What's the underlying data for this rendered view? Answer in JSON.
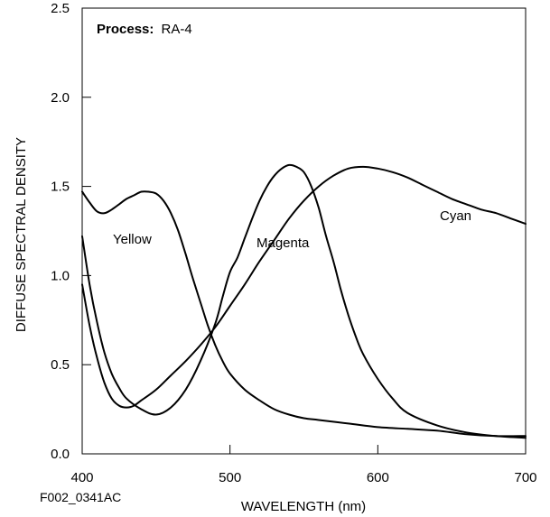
{
  "chart_data": {
    "type": "line",
    "annotation": {
      "bold": "Process:",
      "text": "RA-4"
    },
    "xlabel": "WAVELENGTH (nm)",
    "ylabel": "DIFFUSE SPECTRAL DENSITY",
    "xlim": [
      400,
      700
    ],
    "ylim": [
      0.0,
      2.5
    ],
    "xticks": [
      400,
      500,
      600,
      700
    ],
    "yticks": [
      "0.0",
      "0.5",
      "1.0",
      "1.5",
      "2.0",
      "2.5"
    ],
    "grid": false,
    "legend": "none",
    "series": [
      {
        "name": "Yellow",
        "x": [
          400,
          405,
          410,
          415,
          420,
          425,
          430,
          435,
          440,
          445,
          450,
          455,
          460,
          465,
          470,
          475,
          480,
          485,
          490,
          495,
          500,
          510,
          520,
          530,
          540,
          550,
          560,
          580,
          600,
          620,
          640,
          660,
          680,
          700
        ],
        "y": [
          1.47,
          1.41,
          1.36,
          1.35,
          1.37,
          1.4,
          1.43,
          1.45,
          1.47,
          1.47,
          1.46,
          1.42,
          1.35,
          1.25,
          1.12,
          0.98,
          0.85,
          0.72,
          0.61,
          0.52,
          0.45,
          0.36,
          0.3,
          0.25,
          0.22,
          0.2,
          0.19,
          0.17,
          0.15,
          0.14,
          0.13,
          0.11,
          0.1,
          0.1
        ]
      },
      {
        "name": "Magenta",
        "x": [
          400,
          405,
          410,
          415,
          420,
          425,
          430,
          440,
          450,
          460,
          470,
          480,
          490,
          495,
          500,
          505,
          510,
          515,
          520,
          525,
          530,
          535,
          540,
          545,
          550,
          555,
          560,
          565,
          570,
          575,
          580,
          585,
          590,
          600,
          610,
          620,
          640,
          660,
          680,
          700
        ],
        "y": [
          1.22,
          0.95,
          0.74,
          0.57,
          0.45,
          0.37,
          0.31,
          0.25,
          0.22,
          0.26,
          0.36,
          0.52,
          0.73,
          0.88,
          1.02,
          1.1,
          1.21,
          1.32,
          1.42,
          1.5,
          1.56,
          1.6,
          1.62,
          1.61,
          1.58,
          1.5,
          1.38,
          1.22,
          1.08,
          0.92,
          0.78,
          0.66,
          0.56,
          0.42,
          0.31,
          0.23,
          0.16,
          0.12,
          0.1,
          0.09
        ]
      },
      {
        "name": "Cyan",
        "x": [
          400,
          405,
          410,
          415,
          420,
          425,
          430,
          435,
          440,
          450,
          460,
          470,
          480,
          490,
          500,
          510,
          520,
          530,
          540,
          550,
          560,
          570,
          580,
          590,
          600,
          610,
          620,
          630,
          640,
          650,
          660,
          670,
          680,
          690,
          700
        ],
        "y": [
          0.95,
          0.72,
          0.54,
          0.4,
          0.31,
          0.27,
          0.26,
          0.27,
          0.3,
          0.36,
          0.44,
          0.52,
          0.61,
          0.71,
          0.83,
          0.95,
          1.08,
          1.2,
          1.32,
          1.42,
          1.5,
          1.56,
          1.6,
          1.61,
          1.6,
          1.58,
          1.55,
          1.51,
          1.47,
          1.43,
          1.4,
          1.37,
          1.35,
          1.32,
          1.29
        ]
      }
    ],
    "figure_id": "F002_0341AC"
  }
}
